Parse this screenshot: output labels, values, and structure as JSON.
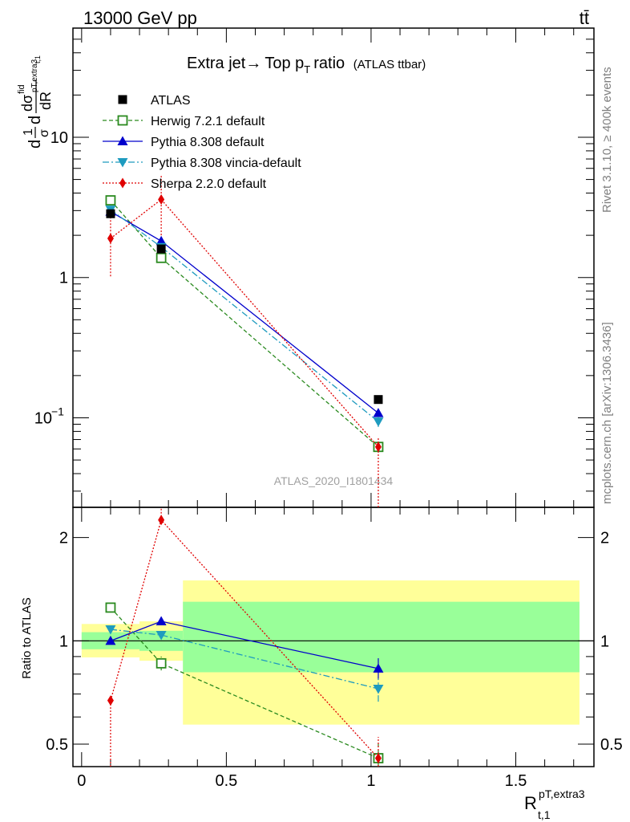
{
  "header": {
    "left_label": "13000 GeV pp",
    "right_label": "tt̄"
  },
  "side_labels": {
    "rivet": "Rivet 3.1.10, ≥ 400k events",
    "source": "mcplots.cern.ch [arXiv:1306.3436]"
  },
  "colors": {
    "atlas": "#000000",
    "herwig": "#2a8a1f",
    "pythia": "#0000cc",
    "vincia": "#1e9bbf",
    "sherpa": "#e00000",
    "band_inner": "#99ff99",
    "band_outer": "#ffff99"
  },
  "chart_data": [
    {
      "type": "line",
      "title": "Extra jet→ Top p_T ratio",
      "title_main": "Extra jet",
      "title_arrow": "→",
      "title_top": "Top p",
      "title_sub": "T",
      "title_ratio": "ratio",
      "title_paren": "(ATLAS ttbar)",
      "analysis_label": "ATLAS_2020_I1801434",
      "ylabel_parts": {
        "d1": "d",
        "one": "1",
        "sigma": "σ",
        "d2": "d",
        "dsigma": "dσ",
        "fid": "fid",
        "dR": "dR",
        "sub": "pT,extra3",
        "sub2": "t,1"
      },
      "yscale": "log",
      "ylim": [
        0.023,
        60
      ],
      "xlim": [
        -0.03,
        1.77
      ],
      "y_ticks": [
        {
          "value": 0.1,
          "label_base": "10",
          "label_exp": "−1"
        },
        {
          "value": 1,
          "label": "1"
        },
        {
          "value": 10,
          "label": "10"
        }
      ],
      "legend_position": "top-left",
      "series": [
        {
          "name": "ATLAS",
          "key": "atlas",
          "marker": "square-filled",
          "x": [
            0.1,
            0.275,
            1.025
          ],
          "y": [
            2.85,
            1.6,
            0.135
          ],
          "err_lo": [
            0,
            0,
            0
          ],
          "err_hi": [
            0,
            0,
            0
          ]
        },
        {
          "name": "Herwig 7.2.1 default",
          "key": "herwig",
          "marker": "square-open",
          "dash": "5,3",
          "x": [
            0.1,
            0.275,
            1.025
          ],
          "y": [
            3.55,
            1.38,
            0.062
          ],
          "err_lo": [
            0.08,
            0.06,
            0.004
          ],
          "err_hi": [
            0.08,
            0.06,
            0.004
          ]
        },
        {
          "name": "Pythia 8.308 default",
          "key": "pythia",
          "marker": "triangle-up",
          "x": [
            0.1,
            0.275,
            1.025
          ],
          "y": [
            2.95,
            1.82,
            0.108
          ],
          "err_lo": [
            0.05,
            0.05,
            0.008
          ],
          "err_hi": [
            0.05,
            0.05,
            0.008
          ]
        },
        {
          "name": "Pythia 8.308 vincia-default",
          "key": "vincia",
          "marker": "triangle-down",
          "dash": "8,3,2,3",
          "x": [
            0.1,
            0.275,
            1.025
          ],
          "y": [
            3.05,
            1.65,
            0.094
          ],
          "err_lo": [
            0.05,
            0.05,
            0.008
          ],
          "err_hi": [
            0.05,
            0.05,
            0.008
          ]
        },
        {
          "name": "Sherpa 2.2.0 default",
          "key": "sherpa",
          "marker": "diamond",
          "dash": "2,2",
          "x": [
            0.1,
            0.275,
            1.025
          ],
          "y": [
            1.9,
            3.6,
            0.062
          ],
          "err_lo": [
            0.88,
            1.6,
            0.06
          ],
          "err_hi": [
            0.9,
            1.8,
            0.01
          ]
        }
      ]
    },
    {
      "type": "line",
      "title": "",
      "ylabel": "Ratio to ATLAS",
      "xlabel_main": "R",
      "xlabel_sup": "pT,extra3",
      "xlabel_sub": "t,1",
      "yscale": "log",
      "ylim": [
        0.43,
        2.45
      ],
      "xlim": [
        -0.03,
        1.77
      ],
      "x_ticks": [
        0,
        0.5,
        1,
        1.5
      ],
      "x_tick_labels": [
        "0",
        "0.5",
        "1",
        "1.5"
      ],
      "y_ticks": [
        0.5,
        1,
        2
      ],
      "y_tick_labels": [
        "0.5",
        "1",
        "2"
      ],
      "bands": [
        {
          "x0": 0.0,
          "x1": 0.2,
          "inner": [
            0.945,
            1.06
          ],
          "outer": [
            0.895,
            1.12
          ]
        },
        {
          "x0": 0.2,
          "x1": 0.35,
          "inner": [
            0.935,
            1.07
          ],
          "outer": [
            0.875,
            1.14
          ]
        },
        {
          "x0": 0.35,
          "x1": 1.72,
          "inner": [
            0.81,
            1.3
          ],
          "outer": [
            0.57,
            1.5
          ]
        }
      ],
      "series": [
        {
          "name": "Herwig 7.2.1 default",
          "key": "herwig",
          "marker": "square-open",
          "dash": "5,3",
          "x": [
            0.1,
            0.275,
            1.025
          ],
          "y": [
            1.25,
            0.86,
            0.455
          ],
          "err_lo": [
            0.03,
            0.04,
            0.05
          ],
          "err_hi": [
            0.03,
            0.04,
            0.05
          ]
        },
        {
          "name": "Pythia 8.308 default",
          "key": "pythia",
          "marker": "triangle-up",
          "x": [
            0.1,
            0.275,
            1.025
          ],
          "y": [
            1.0,
            1.14,
            0.83
          ],
          "err_lo": [
            0.02,
            0.03,
            0.06
          ],
          "err_hi": [
            0.02,
            0.03,
            0.06
          ]
        },
        {
          "name": "Pythia 8.308 vincia-default",
          "key": "vincia",
          "marker": "triangle-down",
          "dash": "8,3,2,3",
          "x": [
            0.1,
            0.275,
            1.025
          ],
          "y": [
            1.08,
            1.04,
            0.725
          ],
          "err_lo": [
            0.02,
            0.03,
            0.06
          ],
          "err_hi": [
            0.02,
            0.03,
            0.06
          ]
        },
        {
          "name": "Sherpa 2.2.0 default",
          "key": "sherpa",
          "marker": "diamond",
          "dash": "2,2",
          "x": [
            0.1,
            0.275,
            1.025
          ],
          "y": [
            0.67,
            2.25,
            0.455
          ],
          "err_lo": [
            0.3,
            0.0,
            0.07
          ],
          "err_hi": [
            0.0,
            0.3,
            0.07
          ]
        }
      ]
    }
  ]
}
